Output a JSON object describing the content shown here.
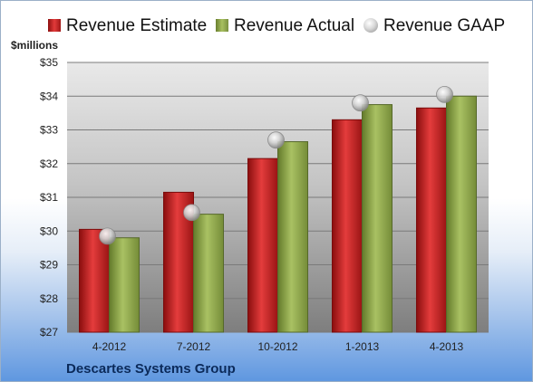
{
  "chart_data": {
    "type": "bar",
    "ylabel": "$millions",
    "categories": [
      "4-2012",
      "7-2012",
      "10-2012",
      "1-2013",
      "4-2013"
    ],
    "series": [
      {
        "name": "Revenue Estimate",
        "type": "bar",
        "color": "#cc2020",
        "values": [
          30.05,
          31.15,
          32.15,
          33.3,
          33.65
        ]
      },
      {
        "name": "Revenue Actual",
        "type": "bar",
        "color": "#8fa84a",
        "values": [
          29.8,
          30.5,
          32.65,
          33.75,
          34.0
        ]
      },
      {
        "name": "Revenue GAAP",
        "type": "scatter",
        "color": "#bbbbbb",
        "values": [
          29.85,
          30.55,
          32.7,
          33.8,
          34.05
        ]
      }
    ],
    "ylim": [
      27,
      35
    ],
    "yticks": [
      "$27",
      "$28",
      "$29",
      "$30",
      "$31",
      "$32",
      "$33",
      "$34",
      "$35"
    ],
    "grid": true,
    "legend_position": "top"
  },
  "footer": {
    "company": "Descartes Systems Group"
  }
}
